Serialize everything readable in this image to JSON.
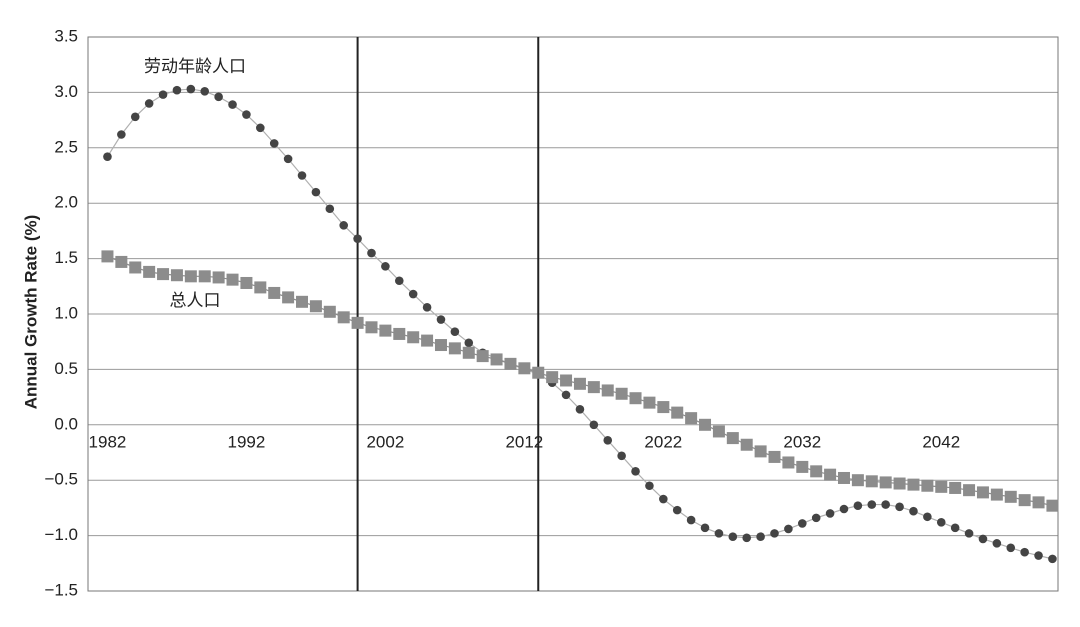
{
  "chart_data": {
    "type": "line",
    "y_label": "Annual Growth Rate (%)",
    "x": [
      1982,
      1983,
      1984,
      1985,
      1986,
      1987,
      1988,
      1989,
      1990,
      1991,
      1992,
      1993,
      1994,
      1995,
      1996,
      1997,
      1998,
      1999,
      2000,
      2001,
      2002,
      2003,
      2004,
      2005,
      2006,
      2007,
      2008,
      2009,
      2010,
      2011,
      2012,
      2013,
      2014,
      2015,
      2016,
      2017,
      2018,
      2019,
      2020,
      2021,
      2022,
      2023,
      2024,
      2025,
      2026,
      2027,
      2028,
      2029,
      2030,
      2031,
      2032,
      2033,
      2034,
      2035,
      2036,
      2037,
      2038,
      2039,
      2040,
      2041,
      2042,
      2043,
      2044,
      2045,
      2046,
      2047,
      2048,
      2049,
      2050
    ],
    "series": [
      {
        "name": "劳动年龄人口",
        "color": "#444444",
        "marker": "circle",
        "values": [
          2.42,
          2.62,
          2.78,
          2.9,
          2.98,
          3.02,
          3.03,
          3.01,
          2.96,
          2.89,
          2.8,
          2.68,
          2.54,
          2.4,
          2.25,
          2.1,
          1.95,
          1.8,
          1.68,
          1.55,
          1.43,
          1.3,
          1.18,
          1.06,
          0.95,
          0.84,
          0.74,
          0.65,
          0.6,
          0.55,
          0.5,
          0.46,
          0.38,
          0.27,
          0.14,
          0.0,
          -0.14,
          -0.28,
          -0.42,
          -0.55,
          -0.67,
          -0.77,
          -0.86,
          -0.93,
          -0.98,
          -1.01,
          -1.02,
          -1.01,
          -0.98,
          -0.94,
          -0.89,
          -0.84,
          -0.8,
          -0.76,
          -0.73,
          -0.72,
          -0.72,
          -0.74,
          -0.78,
          -0.83,
          -0.88,
          -0.93,
          -0.98,
          -1.03,
          -1.07,
          -1.11,
          -1.15,
          -1.18,
          -1.21
        ]
      },
      {
        "name": "总人口",
        "color": "#8c8c8c",
        "marker": "square",
        "values": [
          1.52,
          1.47,
          1.42,
          1.38,
          1.36,
          1.35,
          1.34,
          1.34,
          1.33,
          1.31,
          1.28,
          1.24,
          1.19,
          1.15,
          1.11,
          1.07,
          1.02,
          0.97,
          0.92,
          0.88,
          0.85,
          0.82,
          0.79,
          0.76,
          0.72,
          0.69,
          0.65,
          0.62,
          0.59,
          0.55,
          0.51,
          0.47,
          0.43,
          0.4,
          0.37,
          0.34,
          0.31,
          0.28,
          0.24,
          0.2,
          0.16,
          0.11,
          0.06,
          0.0,
          -0.06,
          -0.12,
          -0.18,
          -0.24,
          -0.29,
          -0.34,
          -0.38,
          -0.42,
          -0.45,
          -0.48,
          -0.5,
          -0.51,
          -0.52,
          -0.53,
          -0.54,
          -0.55,
          -0.56,
          -0.57,
          -0.59,
          -0.61,
          -0.63,
          -0.65,
          -0.68,
          -0.7,
          -0.73
        ]
      }
    ],
    "reference_lines": [
      2000,
      2013
    ],
    "xlim": [
      1980.6,
      2050.4
    ],
    "xticks": [
      1982,
      1992,
      2002,
      2012,
      2022,
      2032,
      2042
    ],
    "ylim": [
      -1.5,
      3.5
    ],
    "yticks": [
      {
        "value": -1.5,
        "label": "−1.5"
      },
      {
        "value": -1.0,
        "label": "−1.0"
      },
      {
        "value": -0.5,
        "label": "−0.5"
      },
      {
        "value": 0,
        "label": "0.0"
      },
      0.5,
      {
        "value": 1.0,
        "label": "1.0"
      },
      1.5,
      {
        "value": 2.0,
        "label": "2.0"
      },
      2.5,
      {
        "value": 3.0,
        "label": "3.0"
      },
      3.5
    ],
    "grid": true
  }
}
